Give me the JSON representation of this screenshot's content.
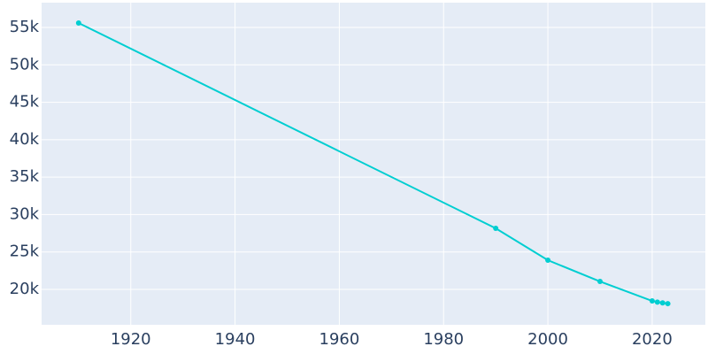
{
  "chart_data": {
    "type": "line",
    "x": [
      1910,
      1990,
      2000,
      2010,
      2020,
      2021,
      2022,
      2023
    ],
    "values": [
      55590,
      28160,
      23900,
      21060,
      18460,
      18300,
      18200,
      18100
    ],
    "color": "#00ced1",
    "xlim": [
      1902.9,
      2030.2
    ],
    "xticks": [
      1920,
      1940,
      1960,
      1980,
      2000,
      2020
    ],
    "ylim": [
      15270,
      58310
    ],
    "yticks": [
      {
        "value": 20000,
        "label": "20k"
      },
      {
        "value": 25000,
        "label": "25k"
      },
      {
        "value": 30000,
        "label": "30k"
      },
      {
        "value": 35000,
        "label": "35k"
      },
      {
        "value": 40000,
        "label": "40k"
      },
      {
        "value": 45000,
        "label": "45k"
      },
      {
        "value": 50000,
        "label": "50k"
      },
      {
        "value": 55000,
        "label": "55k"
      }
    ],
    "grid": true
  }
}
